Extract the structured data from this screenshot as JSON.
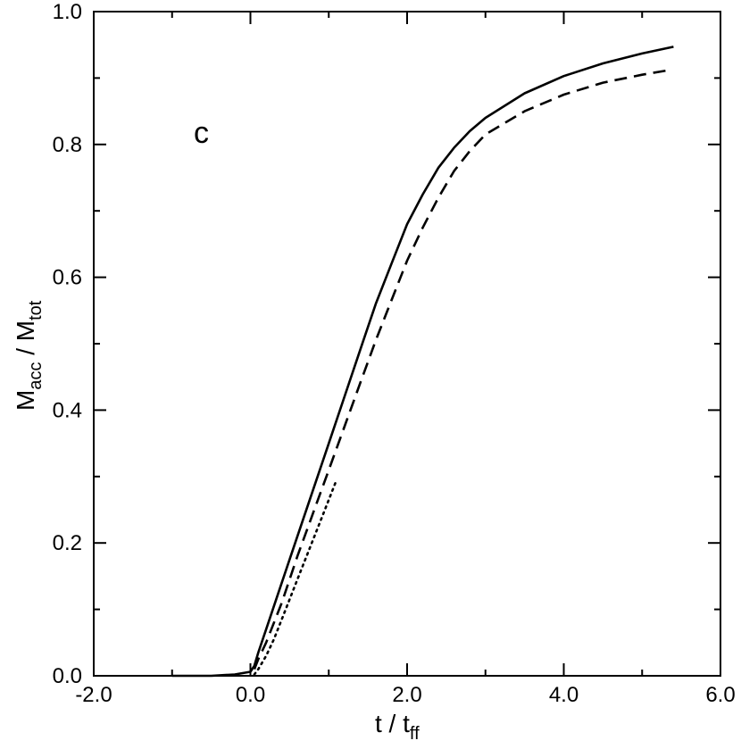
{
  "chart_data": {
    "type": "line",
    "panel_label": "c",
    "xlabel": {
      "main": "t / t",
      "sub": "ff"
    },
    "ylabel": {
      "main": "M",
      "sub1": "acc",
      "mid": " / M",
      "sub2": "tot"
    },
    "xlim": [
      -2.0,
      6.0
    ],
    "ylim": [
      0.0,
      1.0
    ],
    "xticks": [
      -2.0,
      0.0,
      2.0,
      4.0,
      6.0
    ],
    "xtick_labels": [
      "-2.0",
      "0.0",
      "2.0",
      "4.0",
      "6.0"
    ],
    "yticks": [
      0.0,
      0.2,
      0.4,
      0.6,
      0.8,
      1.0
    ],
    "ytick_labels": [
      "0.0",
      "0.2",
      "0.4",
      "0.6",
      "0.8",
      "1.0"
    ],
    "grid": false,
    "series": [
      {
        "style": "solid",
        "x": [
          -1.0,
          -0.5,
          -0.2,
          0.0,
          0.05,
          0.1,
          0.2,
          0.4,
          0.6,
          0.8,
          1.0,
          1.2,
          1.4,
          1.6,
          1.8,
          2.0,
          2.2,
          2.4,
          2.6,
          2.8,
          3.0,
          3.5,
          4.0,
          4.5,
          5.0,
          5.4
        ],
        "y": [
          0.0,
          0.0,
          0.002,
          0.006,
          0.015,
          0.035,
          0.07,
          0.14,
          0.21,
          0.28,
          0.35,
          0.42,
          0.49,
          0.56,
          0.62,
          0.68,
          0.725,
          0.765,
          0.795,
          0.82,
          0.84,
          0.877,
          0.903,
          0.922,
          0.937,
          0.947
        ]
      },
      {
        "style": "dashed",
        "x": [
          0.05,
          0.1,
          0.2,
          0.4,
          0.6,
          0.8,
          1.0,
          1.2,
          1.4,
          1.6,
          1.8,
          2.0,
          2.2,
          2.4,
          2.6,
          2.8,
          3.0,
          3.5,
          4.0,
          4.5,
          5.0,
          5.3
        ],
        "y": [
          0.01,
          0.025,
          0.05,
          0.11,
          0.18,
          0.245,
          0.31,
          0.375,
          0.44,
          0.505,
          0.565,
          0.625,
          0.675,
          0.72,
          0.76,
          0.79,
          0.815,
          0.85,
          0.875,
          0.893,
          0.905,
          0.911
        ]
      },
      {
        "style": "dotted",
        "x": [
          0.05,
          0.1,
          0.2,
          0.3,
          0.4,
          0.5,
          0.6,
          0.7,
          0.8,
          0.9,
          1.0,
          1.1
        ],
        "y": [
          0.002,
          0.01,
          0.03,
          0.055,
          0.085,
          0.115,
          0.145,
          0.175,
          0.205,
          0.235,
          0.265,
          0.295
        ]
      }
    ]
  }
}
